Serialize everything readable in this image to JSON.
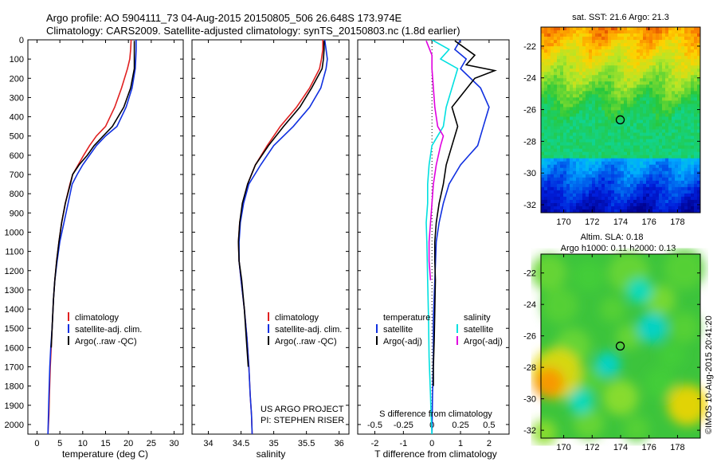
{
  "header": {
    "line1": "Argo profile: AO 5904111_73 04-Aug-2015 20150805_506 26.648S 173.974E",
    "line2": "Climatology: CARS2009. Satellite-adjusted climatology: synTS_20150803.nc (1.8d earlier)"
  },
  "side_label": "©IMOS 10-Aug-2015 20:41:20",
  "colors": {
    "climatology": "#e02020",
    "satellite": "#1030e0",
    "argo": "#000000",
    "cyan": "#00e0e0",
    "magenta": "#e000e0"
  },
  "chart_data": [
    {
      "type": "line",
      "xlabel": "temperature (deg C)",
      "ylabel": "",
      "xlim": [
        -2,
        32
      ],
      "ylim": [
        2050,
        0
      ],
      "xticks": [
        0,
        5,
        10,
        15,
        20,
        25,
        30
      ],
      "yticks": [
        0,
        100,
        200,
        300,
        400,
        500,
        600,
        700,
        800,
        900,
        1000,
        1100,
        1200,
        1300,
        1400,
        1500,
        1600,
        1700,
        1800,
        1900,
        2000
      ],
      "legend_position": "lower-center",
      "series": [
        {
          "name": "climatology",
          "color": "#e02020",
          "x": [
            20.6,
            20.5,
            20.3,
            19.8,
            18.5,
            17.0,
            15.0,
            13.0,
            11.5,
            10.2,
            9.0,
            7.8,
            7.2,
            6.2,
            5.4,
            4.8,
            4.3,
            3.9,
            3.6,
            3.3,
            3.1,
            2.9,
            2.7,
            2.6,
            2.4
          ],
          "y": [
            0,
            50,
            100,
            150,
            250,
            350,
            450,
            500,
            550,
            600,
            650,
            700,
            750,
            850,
            950,
            1050,
            1150,
            1250,
            1350,
            1500,
            1600,
            1700,
            1850,
            1950,
            2050
          ]
        },
        {
          "name": "satellite-adj. clim.",
          "color": "#1030e0",
          "x": [
            21.7,
            21.7,
            21.6,
            21.5,
            20.8,
            19.5,
            17.5,
            15.0,
            13.0,
            11.5,
            10.0,
            8.8,
            7.7,
            6.8,
            5.9,
            5.0,
            4.4,
            3.9,
            3.6,
            3.3,
            3.0,
            2.8,
            2.6,
            2.5,
            2.4
          ],
          "y": [
            0,
            50,
            100,
            150,
            250,
            350,
            450,
            500,
            550,
            600,
            650,
            700,
            750,
            850,
            950,
            1050,
            1150,
            1250,
            1350,
            1500,
            1600,
            1700,
            1850,
            1950,
            2050
          ]
        },
        {
          "name": "Argo(..raw -QC)",
          "color": "#000000",
          "x": [
            21.3,
            21.3,
            21.3,
            21.3,
            20.5,
            19.0,
            16.5,
            14.5,
            12.5,
            11.0,
            9.2,
            7.8,
            7.3,
            6.2,
            5.4,
            4.8,
            4.3,
            3.9,
            3.6,
            3.3,
            3.1
          ],
          "y": [
            5,
            50,
            100,
            150,
            250,
            350,
            450,
            500,
            550,
            600,
            650,
            700,
            750,
            850,
            950,
            1050,
            1150,
            1250,
            1350,
            1500,
            1600
          ]
        }
      ]
    },
    {
      "type": "line",
      "xlabel": "salinity",
      "ylabel": "",
      "xlim": [
        33.75,
        36.15
      ],
      "ylim": [
        2050,
        0
      ],
      "xticks": [
        34,
        34.5,
        35,
        35.5,
        36
      ],
      "legend_position": "lower-center",
      "series": [
        {
          "name": "climatology",
          "color": "#e02020",
          "x": [
            35.75,
            35.75,
            35.73,
            35.7,
            35.55,
            35.35,
            35.1,
            34.9,
            34.72,
            34.6,
            34.53,
            34.48,
            34.46,
            34.47,
            34.5,
            34.55,
            34.59,
            34.62,
            34.64,
            34.66,
            34.67
          ],
          "y": [
            0,
            50,
            100,
            150,
            250,
            350,
            450,
            550,
            650,
            750,
            850,
            950,
            1050,
            1150,
            1250,
            1400,
            1550,
            1700,
            1850,
            1950,
            2050
          ]
        },
        {
          "name": "satellite-adj. clim.",
          "color": "#1030e0",
          "x": [
            35.78,
            35.8,
            35.82,
            35.8,
            35.72,
            35.55,
            35.3,
            35.0,
            34.8,
            34.62,
            34.54,
            34.49,
            34.47,
            34.47,
            34.5,
            34.55,
            34.59,
            34.62,
            34.64,
            34.66,
            34.67
          ],
          "y": [
            0,
            50,
            100,
            150,
            250,
            350,
            450,
            550,
            650,
            750,
            850,
            950,
            1050,
            1150,
            1250,
            1400,
            1550,
            1700,
            1850,
            1950,
            2050
          ]
        },
        {
          "name": "Argo(..raw -QC)",
          "color": "#000000",
          "x": [
            35.77,
            35.77,
            35.76,
            35.74,
            35.58,
            35.4,
            35.15,
            34.92,
            34.72,
            34.6,
            34.52,
            34.48,
            34.46,
            34.47,
            34.51,
            34.55,
            34.58,
            34.61
          ],
          "y": [
            5,
            50,
            100,
            150,
            250,
            350,
            450,
            550,
            650,
            750,
            850,
            950,
            1050,
            1150,
            1250,
            1400,
            1550,
            1700
          ]
        }
      ]
    },
    {
      "type": "line",
      "xlabel": "T difference from climatology",
      "xlabel_top": "S difference from climatology",
      "xlim": [
        -2.6,
        2.7
      ],
      "ylim": [
        2050,
        0
      ],
      "xticks": [
        -2,
        -1,
        0,
        1,
        2
      ],
      "xticks_s": [
        -0.5,
        -0.25,
        0,
        0.25,
        0.5
      ],
      "legend_temperature_title": "temperature",
      "legend_salinity_title": "salinity",
      "series": [
        {
          "name": "satellite",
          "group": "temperature",
          "color": "#1030e0",
          "x": [
            1.0,
            0.8,
            1.2,
            1.0,
            1.7,
            2.0,
            1.8,
            1.6,
            1.3,
            1.0,
            0.8,
            0.6,
            0.4,
            0.25,
            0.15,
            0.1,
            0.05,
            0.05,
            0.02,
            0.0
          ],
          "y": [
            0,
            50,
            100,
            150,
            250,
            350,
            450,
            550,
            600,
            650,
            700,
            750,
            850,
            950,
            1050,
            1250,
            1450,
            1650,
            1850,
            2050
          ]
        },
        {
          "name": "Argo(-adj)",
          "group": "temperature",
          "color": "#000000",
          "x": [
            0.8,
            1.5,
            1.2,
            2.2,
            1.5,
            0.7,
            0.9,
            0.7,
            0.5,
            0.4,
            0.25,
            0.15,
            0.1,
            0.1,
            0.12,
            0.1,
            0.08,
            0.05,
            0.05
          ],
          "y": [
            5,
            80,
            130,
            160,
            200,
            350,
            450,
            550,
            650,
            750,
            850,
            950,
            1050,
            1150,
            1250,
            1400,
            1550,
            1700,
            1800
          ]
        },
        {
          "name": "satellite",
          "group": "salinity",
          "color": "#00e0e0",
          "x": [
            0.0,
            0.6,
            0.3,
            0.9,
            0.7,
            0.5,
            0.4,
            0.0,
            -0.1,
            -0.15,
            -0.15,
            -0.2,
            -0.18,
            -0.15,
            -0.12,
            -0.1,
            -0.05,
            -0.03,
            0.0
          ],
          "y": [
            0,
            50,
            100,
            150,
            250,
            350,
            450,
            550,
            650,
            750,
            850,
            950,
            1050,
            1250,
            1450,
            1650,
            1850,
            1950,
            2050
          ]
        },
        {
          "name": "Argo(-adj)",
          "group": "salinity",
          "color": "#e000e0",
          "x": [
            -0.2,
            0.0,
            0.0,
            0.05,
            0.1,
            0.2,
            0.4,
            0.3,
            0.15,
            0.05,
            0.0,
            -0.05,
            -0.1,
            -0.1,
            -0.05
          ],
          "y": [
            5,
            80,
            150,
            250,
            350,
            450,
            500,
            550,
            650,
            750,
            850,
            950,
            1050,
            1150,
            1250
          ]
        }
      ]
    },
    {
      "type": "heatmap",
      "title": "sat. SST: 21.6  Argo: 21.3",
      "xlim": [
        168.4,
        179.6
      ],
      "ylim": [
        -32.5,
        -20.8
      ],
      "xticks": [
        170,
        172,
        174,
        176,
        178
      ],
      "yticks": [
        -22,
        -24,
        -26,
        -28,
        -30,
        -32
      ],
      "marker": {
        "lon": 173.974,
        "lat": -26.648
      }
    },
    {
      "type": "heatmap",
      "title": "Altim. SLA: 0.18",
      "subtitle": "Argo h1000: 0.11 h2000: 0.13",
      "xlim": [
        168.4,
        179.6
      ],
      "ylim": [
        -32.5,
        -20.8
      ],
      "xticks": [
        170,
        172,
        174,
        176,
        178
      ],
      "yticks": [
        -22,
        -24,
        -26,
        -28,
        -30,
        -32
      ],
      "marker": {
        "lon": 173.974,
        "lat": -26.648
      }
    }
  ],
  "profile_notes": {
    "project": "US ARGO PROJECT",
    "pi": "PI: STEPHEN RISER"
  }
}
